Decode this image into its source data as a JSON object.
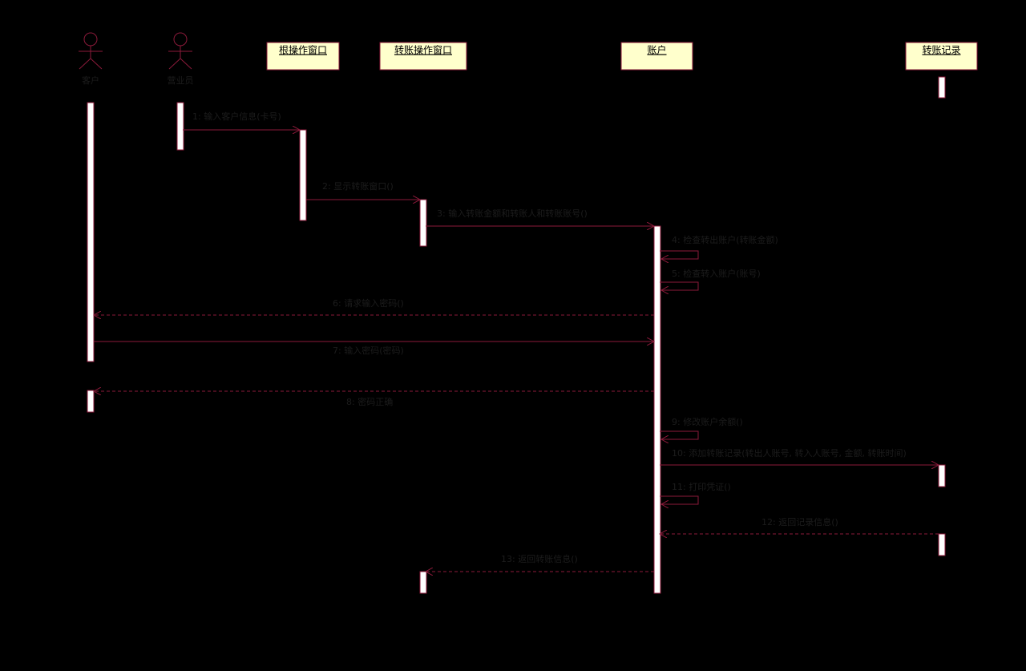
{
  "actors": [
    {
      "label": "客户"
    },
    {
      "label": "营业员"
    }
  ],
  "objects": [
    {
      "label": "根操作窗口"
    },
    {
      "label": "转账操作窗口"
    },
    {
      "label": "账户"
    },
    {
      "label": "转账记录"
    }
  ],
  "messages": [
    {
      "label": "1: 输入客户信息(卡号)"
    },
    {
      "label": "2: 显示转账窗口()"
    },
    {
      "label": "3: 输入转账金额和转账人和转账账号()"
    },
    {
      "label": "4: 检查转出账户(转账金额)"
    },
    {
      "label": "5: 检查转入账户(账号)"
    },
    {
      "label": "6: 请求输入密码()"
    },
    {
      "label": "7: 输入密码(密码)"
    },
    {
      "label": "8: 密码正确"
    },
    {
      "label": "9: 修改账户余额()"
    },
    {
      "label": "10: 添加转账记录(转出人账号, 转入人账号, 金额, 转账时间)"
    },
    {
      "label": "11: 打印凭证()"
    },
    {
      "label": "12: 返回记录信息()"
    },
    {
      "label": "13: 返回转账信息()"
    }
  ]
}
